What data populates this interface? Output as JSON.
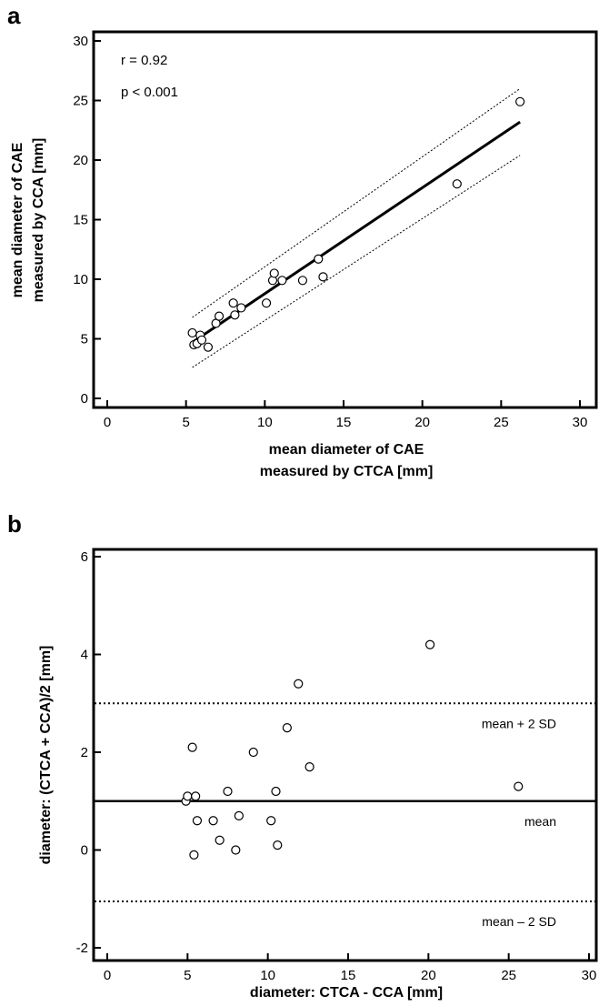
{
  "chart_data": [
    {
      "panel_label": "a",
      "type": "scatter",
      "xlabel": [
        "mean diameter of CAE",
        "measured by CTCA [mm]"
      ],
      "ylabel": [
        "mean diameter of CAE",
        "measured by CCA [mm]"
      ],
      "xlim": [
        0,
        30
      ],
      "ylim": [
        0,
        30
      ],
      "xticks": [
        "0",
        "5",
        "10",
        "15",
        "20",
        "25",
        "30"
      ],
      "yticks": [
        "0",
        "5",
        "10",
        "15",
        "20",
        "25",
        "30"
      ],
      "annotations": [
        "r = 0.92",
        "p < 0.001"
      ],
      "points": [
        {
          "x": 5.4,
          "y": 5.5
        },
        {
          "x": 5.5,
          "y": 4.5
        },
        {
          "x": 5.7,
          "y": 4.6
        },
        {
          "x": 5.9,
          "y": 5.3
        },
        {
          "x": 6.0,
          "y": 4.9
        },
        {
          "x": 6.4,
          "y": 4.3
        },
        {
          "x": 6.9,
          "y": 6.3
        },
        {
          "x": 7.1,
          "y": 6.9
        },
        {
          "x": 8.0,
          "y": 8.0
        },
        {
          "x": 8.1,
          "y": 7.0
        },
        {
          "x": 8.5,
          "y": 7.6
        },
        {
          "x": 10.1,
          "y": 8.0
        },
        {
          "x": 10.5,
          "y": 9.9
        },
        {
          "x": 10.6,
          "y": 10.5
        },
        {
          "x": 11.1,
          "y": 9.9
        },
        {
          "x": 12.4,
          "y": 9.9
        },
        {
          "x": 13.4,
          "y": 11.7
        },
        {
          "x": 13.7,
          "y": 10.2
        },
        {
          "x": 22.2,
          "y": 18.0
        },
        {
          "x": 26.2,
          "y": 24.9
        }
      ],
      "regression_line": {
        "x": [
          5.4,
          26.2
        ],
        "y": [
          4.7,
          23.2
        ]
      },
      "confidence_bands": [
        {
          "x": [
            5.4,
            26.2
          ],
          "y": [
            6.8,
            26.0
          ]
        },
        {
          "x": [
            5.4,
            26.2
          ],
          "y": [
            2.6,
            20.4
          ]
        }
      ],
      "grid": false
    },
    {
      "panel_label": "b",
      "type": "scatter",
      "xlabel": "diameter: CTCA - CCA [mm]",
      "ylabel": "diameter: (CTCA + CCA)/2 [mm]",
      "xlim": [
        0,
        30
      ],
      "ylim": [
        -2,
        6
      ],
      "xticks": [
        "0",
        "5",
        "10",
        "15",
        "20",
        "25",
        "30"
      ],
      "yticks": [
        "-2",
        "0",
        "2",
        "4",
        "6"
      ],
      "points": [
        {
          "x": 4.9,
          "y": 1.0
        },
        {
          "x": 5.0,
          "y": 1.1
        },
        {
          "x": 5.3,
          "y": 2.1
        },
        {
          "x": 5.4,
          "y": -0.1
        },
        {
          "x": 5.5,
          "y": 1.1
        },
        {
          "x": 5.6,
          "y": 0.6
        },
        {
          "x": 6.6,
          "y": 0.6
        },
        {
          "x": 7.0,
          "y": 0.2
        },
        {
          "x": 7.5,
          "y": 1.2
        },
        {
          "x": 8.0,
          "y": 0.0
        },
        {
          "x": 8.2,
          "y": 0.7
        },
        {
          "x": 9.1,
          "y": 2.0
        },
        {
          "x": 10.2,
          "y": 0.6
        },
        {
          "x": 10.5,
          "y": 1.2
        },
        {
          "x": 10.6,
          "y": 0.1
        },
        {
          "x": 11.2,
          "y": 2.5
        },
        {
          "x": 11.9,
          "y": 3.4
        },
        {
          "x": 12.6,
          "y": 1.7
        },
        {
          "x": 20.1,
          "y": 4.2
        },
        {
          "x": 25.6,
          "y": 1.3
        }
      ],
      "reference_lines": [
        {
          "label": "mean + 2 SD",
          "y": 3.0,
          "style": "dotted"
        },
        {
          "label": "mean",
          "y": 1.0,
          "style": "solid"
        },
        {
          "label": "mean – 2 SD",
          "y": -1.05,
          "style": "dotted"
        }
      ],
      "grid": false
    }
  ]
}
